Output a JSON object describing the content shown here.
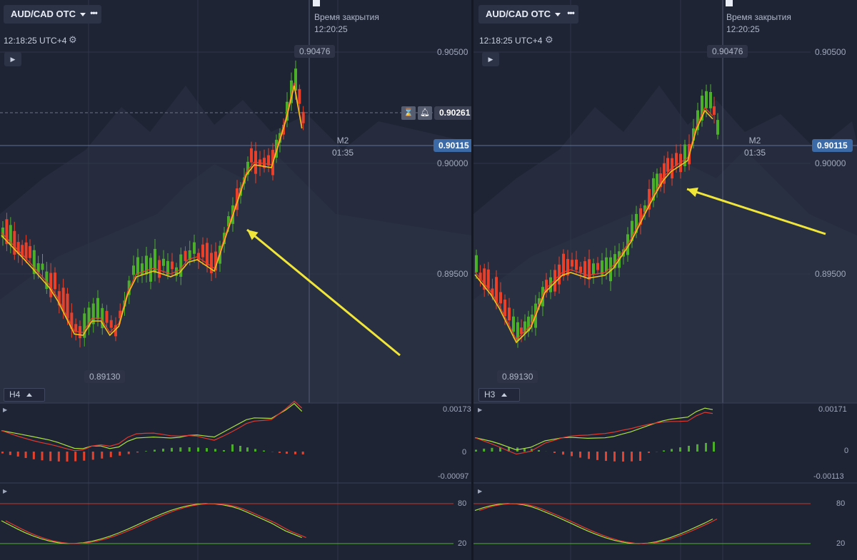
{
  "left": {
    "pair": "AUD/CAD OTC",
    "time": "12:18:25 UTC+4",
    "close_label": "Время закрытия",
    "close_time": "12:20:25",
    "high": "0.90476",
    "low": "0.89130",
    "axis": [
      "0.90500",
      "0.90000",
      "0.89500"
    ],
    "current_price": "0.90115",
    "line_price": "0.90261",
    "timeframe": "M2",
    "countdown": "01:35",
    "indicator_tag": "H4",
    "macd_labels": [
      "0.00173",
      "0",
      "-0.00097"
    ],
    "stoch_labels": [
      "80",
      "20"
    ]
  },
  "right": {
    "pair": "AUD/CAD OTC",
    "time": "12:18:25 UTC+4",
    "close_label": "Время закрытия",
    "close_time": "12:20:25",
    "high": "0.90476",
    "low": "0.89130",
    "axis": [
      "0.90500",
      "0.90000",
      "0.89500"
    ],
    "current_price": "0.90115",
    "timeframe": "M2",
    "countdown": "01:35",
    "indicator_tag": "H3",
    "macd_labels": [
      "0.00171",
      "0",
      "-0.00113"
    ],
    "stoch_labels": [
      "80",
      "20"
    ]
  },
  "icons": {
    "more": "more-dots-icon",
    "settings": "gear-icon",
    "play": "play-icon",
    "timer": "hourglass-icon",
    "alert": "bell-icon",
    "flag": "flag-icon"
  },
  "colors": {
    "bull": "#4caf2a",
    "bear": "#e8402a",
    "ma": "#f2c21b",
    "annotation_arrow": "#f0e63a",
    "current_price_box": "#3c6aa6",
    "macd_line": "#a9e23f",
    "signal_line": "#e0392e",
    "stoch_level_80": "#c0392b",
    "stoch_level_20": "#4caf2a"
  }
}
